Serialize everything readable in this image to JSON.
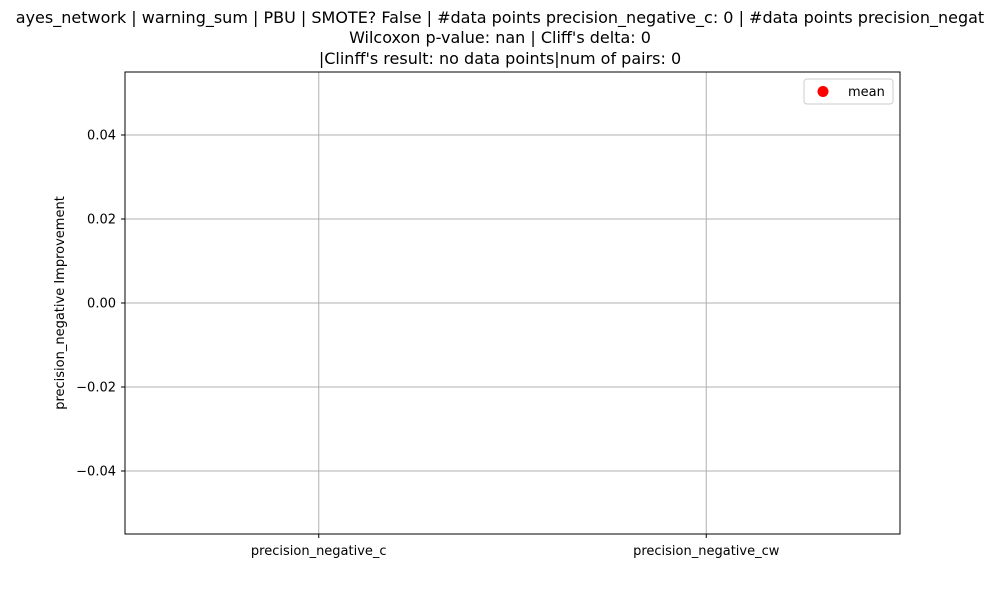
{
  "chart_data": {
    "type": "scatter",
    "title_lines": [
      "ayes_network | warning_sum | PBU | SMOTE? False | #data points precision_negative_c: 0 | #data points precision_negat",
      "Wilcoxon p-value: nan | Cliff's delta: 0",
      "|Clinff's result: no data points|num of pairs: 0"
    ],
    "xlabel": "",
    "ylabel": "precision_negative Improvement",
    "categories": [
      "precision_negative_c",
      "precision_negative_cw"
    ],
    "ylim": [
      -0.055,
      0.055
    ],
    "yticks": [
      "0.04",
      "0.02",
      "0.00",
      "−0.02",
      "−0.04"
    ],
    "ytick_values": [
      0.04,
      0.02,
      0.0,
      -0.02,
      -0.04
    ],
    "series": [
      {
        "name": "mean",
        "values": [],
        "color": "#ff0000",
        "marker": "circle"
      }
    ],
    "grid": true,
    "legend_position": "top-right"
  }
}
